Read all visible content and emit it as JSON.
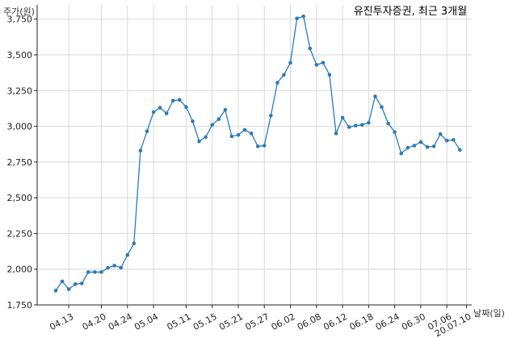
{
  "chart_data": {
    "type": "line",
    "title": "유진투자증권, 최근 3개월",
    "ylabel": "주가(원)",
    "xlabel": "날짜(일)",
    "ylim": [
      1750,
      3850
    ],
    "yticks": [
      1750,
      2000,
      2250,
      2500,
      2750,
      3000,
      3250,
      3500,
      3750
    ],
    "ytick_labels": [
      "1,750",
      "2,000",
      "2,250",
      "2,500",
      "2,750",
      "3,000",
      "3,250",
      "3,500",
      "3,750"
    ],
    "grid": true,
    "line_color": "#2b7bb9",
    "xtick_labels": [
      "04.13",
      "04.20",
      "04.24",
      "05.04",
      "05.11",
      "05.15",
      "05.21",
      "05.27",
      "06.02",
      "06.08",
      "06.12",
      "06.18",
      "06.24",
      "06.30",
      "07.06",
      "20.07.10"
    ],
    "xtick_index": [
      2,
      7,
      11,
      15,
      20,
      24,
      28,
      32,
      36,
      40,
      44,
      48,
      52,
      56,
      60,
      63
    ],
    "series": [
      {
        "values": [
          1850,
          1915,
          1860,
          1895,
          1900,
          1980,
          1980,
          1980,
          2010,
          2025,
          2010,
          2100,
          2180,
          2830,
          2965,
          3100,
          3130,
          3090,
          3180,
          3185,
          3135,
          3035,
          2895,
          2925,
          3010,
          3050,
          3115,
          2930,
          2940,
          2975,
          2950,
          2860,
          2865,
          3075,
          3305,
          3360,
          3445,
          3755,
          3770,
          3545,
          3430,
          3445,
          3360,
          2950,
          3060,
          2995,
          3005,
          3010,
          3025,
          3210,
          3135,
          3020,
          2960,
          2810,
          2850,
          2865,
          2890,
          2855,
          2860,
          2945,
          2900,
          2905,
          2835
        ]
      }
    ]
  }
}
